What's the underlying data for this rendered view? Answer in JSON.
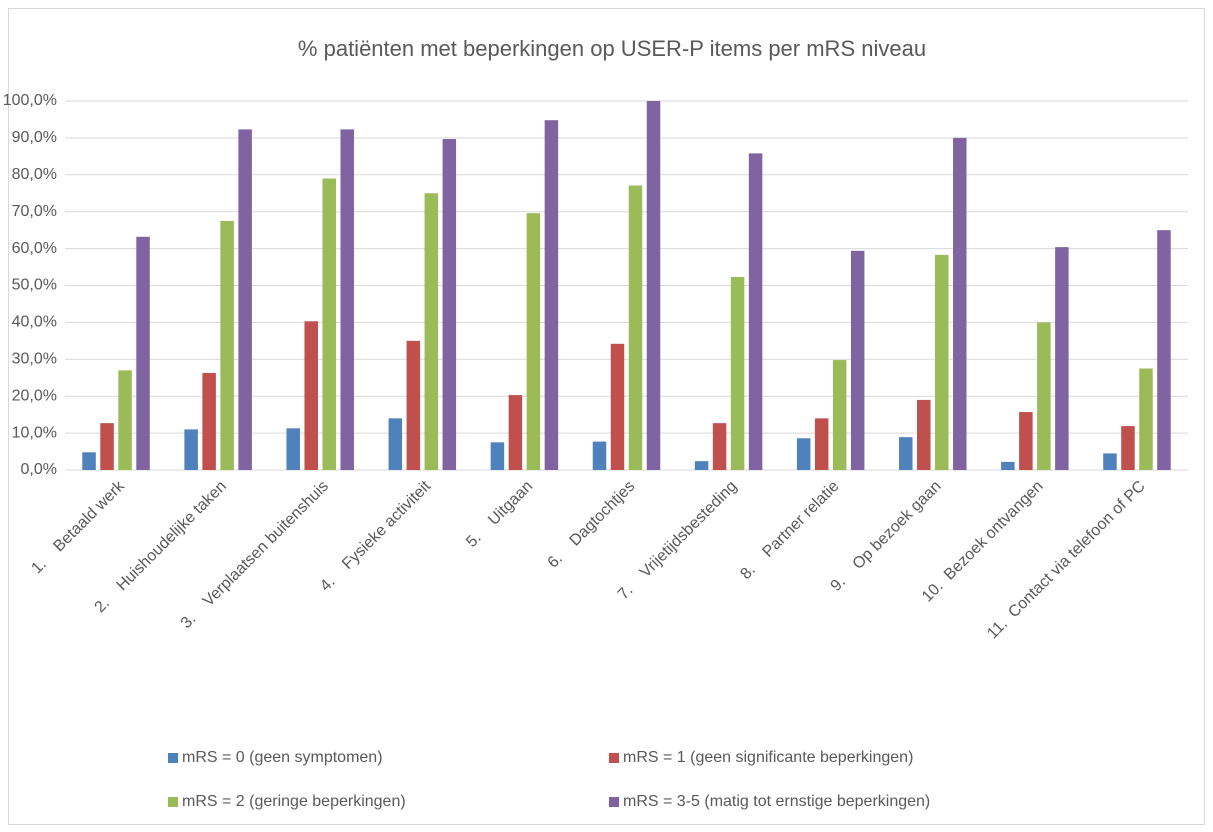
{
  "chart_data": {
    "type": "bar",
    "title": "% patiënten met beperkingen op USER-P items per mRS niveau",
    "categories": [
      "1.    Betaald werk",
      "2.    Huishoudelijke taken",
      "3.    Verplaatsen buitenshuis",
      "4.    Fysieke activiteit",
      "5.    Uitgaan",
      "6.    Dagtochtjes",
      "7.    Vrijetijdsbesteding",
      "8.    Partner relatie",
      "9.    Op bezoek gaan",
      "10.  Bezoek ontvangen",
      "11.  Contact via telefoon of PC"
    ],
    "series": [
      {
        "name": "mRS = 0 (geen symptomen)",
        "color": "#4f81bd",
        "values": [
          4.8,
          11,
          11.3,
          14,
          7.5,
          7.7,
          2.4,
          8.6,
          8.9,
          2.2,
          4.5
        ]
      },
      {
        "name": "mRS = 1 (geen significante beperkingen)",
        "color": "#c0504d",
        "values": [
          12.7,
          26.3,
          40.3,
          35,
          20.3,
          34.2,
          12.7,
          14,
          19,
          15.7,
          11.9
        ]
      },
      {
        "name": "mRS = 2 (geringe beperkingen)",
        "color": "#9bbb59",
        "values": [
          27,
          67.5,
          79,
          75,
          69.6,
          77.1,
          52.3,
          29.8,
          58.3,
          40,
          27.5
        ]
      },
      {
        "name": "mRS = 3-5 (matig tot ernstige beperkingen)",
        "color": "#8064a2",
        "values": [
          63.2,
          92.3,
          92.3,
          89.7,
          94.8,
          100,
          85.8,
          59.4,
          90,
          60.4,
          65
        ]
      }
    ],
    "ylim": [
      0,
      100
    ],
    "yticks": [
      {
        "value": 0,
        "label": "0,0%"
      },
      {
        "value": 10,
        "label": "10,0%"
      },
      {
        "value": 20,
        "label": "20,0%"
      },
      {
        "value": 30,
        "label": "30,0%"
      },
      {
        "value": 40,
        "label": "40,0%"
      },
      {
        "value": 50,
        "label": "50,0%"
      },
      {
        "value": 60,
        "label": "60,0%"
      },
      {
        "value": 70,
        "label": "70,0%"
      },
      {
        "value": 80,
        "label": "80,0%"
      },
      {
        "value": 90,
        "label": "90,0%"
      },
      {
        "value": 100,
        "label": "100,0%"
      }
    ],
    "grid": true
  }
}
